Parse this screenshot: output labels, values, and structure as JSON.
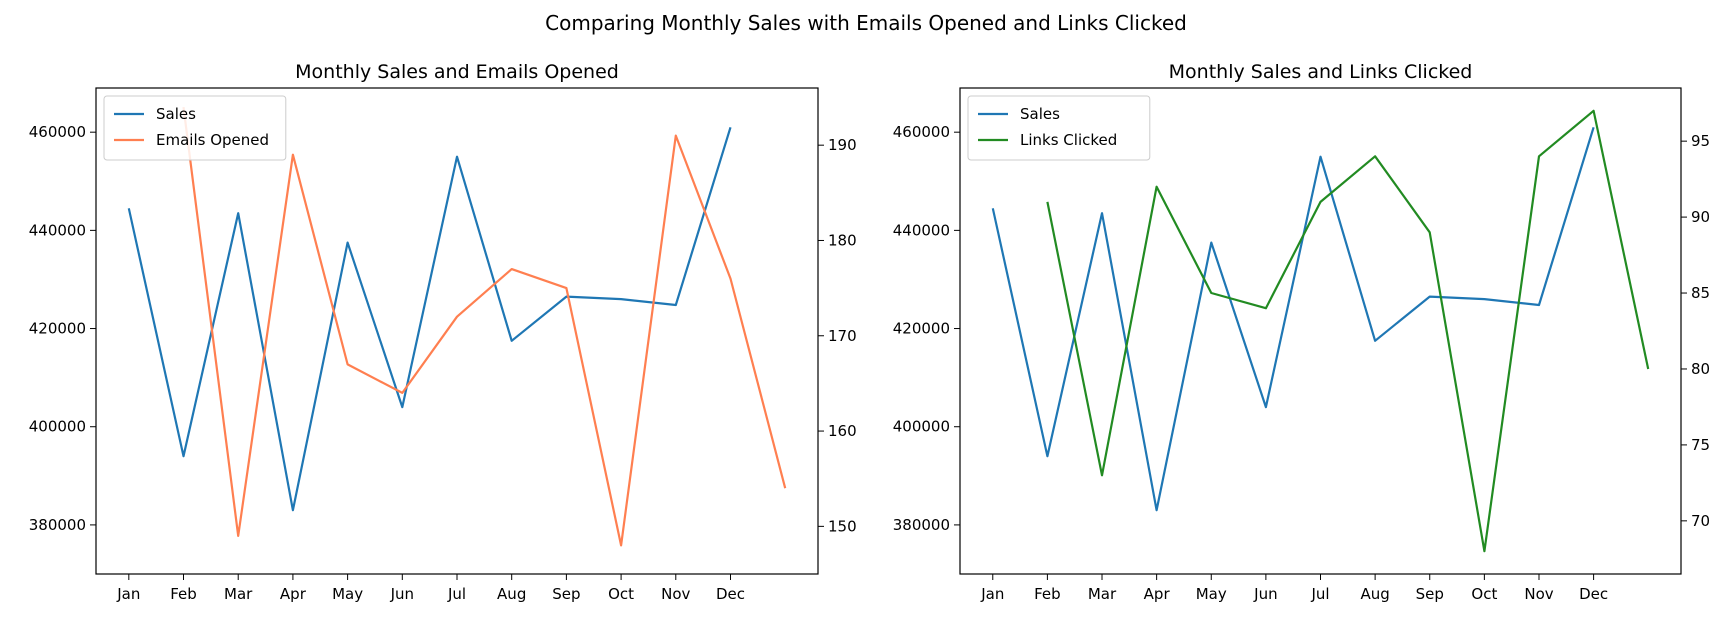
{
  "figure": {
    "title": "Comparing Monthly Sales with Emails Opened and Links Clicked"
  },
  "chart_data": [
    {
      "type": "line",
      "title": "Monthly Sales and Emails Opened",
      "categories": [
        "Jan",
        "Feb",
        "Mar",
        "Apr",
        "May",
        "Jun",
        "Jul",
        "Aug",
        "Sep",
        "Oct",
        "Nov",
        "Dec"
      ],
      "xlim": [
        -0.6,
        12.6
      ],
      "left_axis": {
        "ylim": [
          370000,
          469000
        ],
        "ticks": [
          380000,
          400000,
          420000,
          440000,
          460000
        ]
      },
      "right_axis": {
        "ylim": [
          145,
          196
        ],
        "ticks": [
          150,
          160,
          170,
          180,
          190
        ]
      },
      "series": [
        {
          "name": "Sales",
          "axis": "left",
          "color": "#1f77b4",
          "x": [
            0,
            1,
            2,
            3,
            4,
            5,
            6,
            7,
            8,
            9,
            10,
            11
          ],
          "values": [
            444500,
            394000,
            443500,
            383000,
            437500,
            404000,
            455000,
            417500,
            426500,
            426000,
            424800,
            461000
          ]
        },
        {
          "name": "Emails Opened",
          "axis": "right",
          "color": "#ff7f50",
          "x": [
            1,
            2,
            3,
            4,
            5,
            6,
            7,
            8,
            9,
            10,
            11,
            12
          ],
          "values": [
            194,
            149,
            189,
            167,
            164,
            172,
            177,
            175,
            148,
            191,
            176,
            154
          ]
        }
      ],
      "legend": {
        "position": "upper-left"
      }
    },
    {
      "type": "line",
      "title": "Monthly Sales and Links Clicked",
      "categories": [
        "Jan",
        "Feb",
        "Mar",
        "Apr",
        "May",
        "Jun",
        "Jul",
        "Aug",
        "Sep",
        "Oct",
        "Nov",
        "Dec"
      ],
      "xlim": [
        -0.6,
        12.6
      ],
      "left_axis": {
        "ylim": [
          370000,
          469000
        ],
        "ticks": [
          380000,
          400000,
          420000,
          440000,
          460000
        ]
      },
      "right_axis": {
        "ylim": [
          66.5,
          98.5
        ],
        "ticks": [
          70,
          75,
          80,
          85,
          90,
          95
        ]
      },
      "series": [
        {
          "name": "Sales",
          "axis": "left",
          "color": "#1f77b4",
          "x": [
            0,
            1,
            2,
            3,
            4,
            5,
            6,
            7,
            8,
            9,
            10,
            11
          ],
          "values": [
            444500,
            394000,
            443500,
            383000,
            437500,
            404000,
            455000,
            417500,
            426500,
            426000,
            424800,
            461000
          ]
        },
        {
          "name": "Links Clicked",
          "axis": "right",
          "color": "#228b22",
          "x": [
            1,
            2,
            3,
            4,
            5,
            6,
            7,
            8,
            9,
            10,
            11,
            12
          ],
          "values": [
            91,
            73,
            92,
            85,
            84,
            91,
            94,
            89,
            68,
            94,
            97,
            80
          ]
        }
      ],
      "legend": {
        "position": "upper-left"
      }
    }
  ]
}
